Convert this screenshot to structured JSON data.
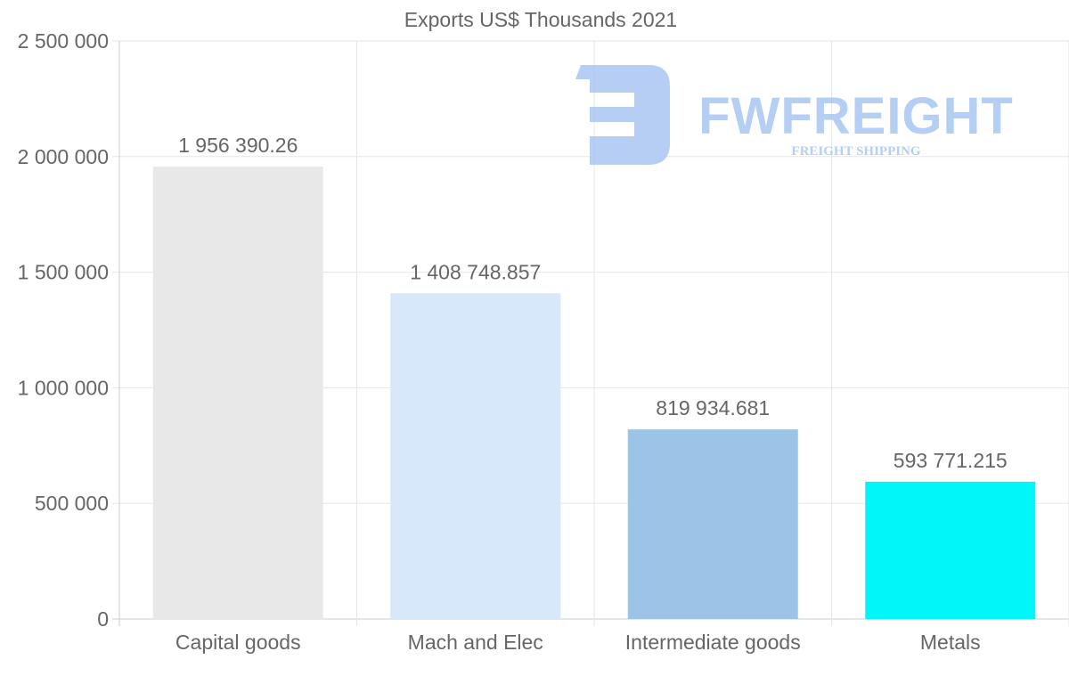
{
  "chart_data": {
    "type": "bar",
    "title": "Exports US$ Thousands 2021",
    "categories": [
      "Capital goods",
      "Mach and Elec",
      "Intermediate goods",
      "Metals"
    ],
    "values": [
      1956390.26,
      1408748.857,
      819934.681,
      593771.215
    ],
    "value_labels": [
      "1 956 390.26",
      "1 408 748.857",
      "819 934.681",
      "593 771.215"
    ],
    "colors": [
      "#e8e8e8",
      "#d6e8f9",
      "#9bc4e6",
      "#00f6f8"
    ],
    "ylim": [
      0,
      2500000
    ],
    "yticks": [
      0,
      500000,
      1000000,
      1500000,
      2000000,
      2500000
    ],
    "ytick_labels": [
      "0",
      "500 000",
      "1 000 000",
      "1 500 000",
      "2 000 000",
      "2 500 000"
    ],
    "xlabel": "",
    "ylabel": "",
    "grid": true,
    "legend": "none"
  },
  "watermark": {
    "brand": "FWFREIGHT",
    "tagline": "FREIGHT SHIPPING",
    "color": "#a9c6f2"
  }
}
